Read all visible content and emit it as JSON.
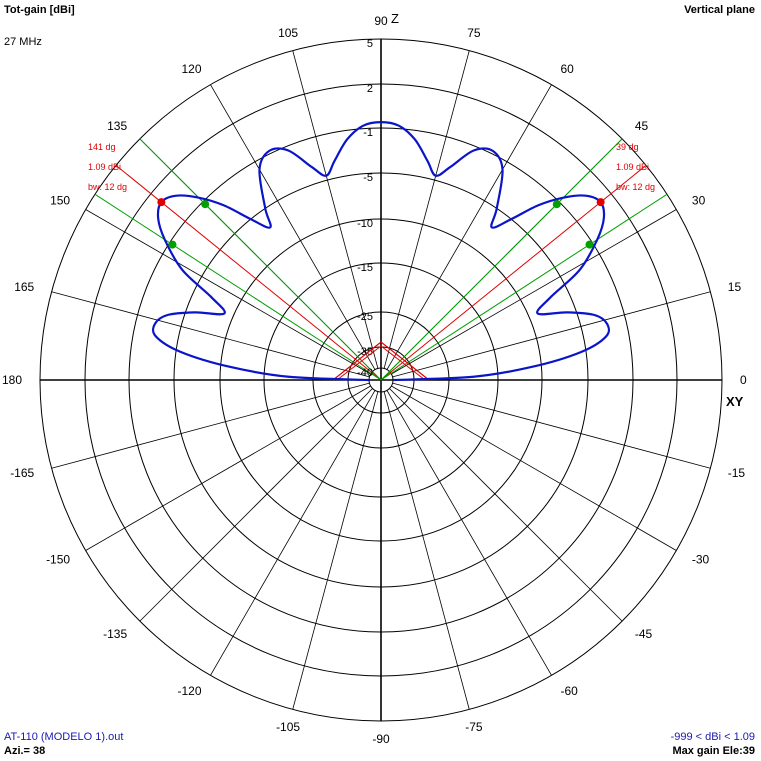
{
  "header": {
    "title": "Tot-gain [dBi]",
    "frequency": "27 MHz",
    "plane": "Vertical plane"
  },
  "footer": {
    "file": "AT-110 (MODELO 1).out",
    "azimuth": "Azi.= 38",
    "range": "-999 < dBi < 1.09",
    "max_gain": "Max gain Ele:39"
  },
  "axis_labels": {
    "z": "Z",
    "xy": "XY"
  },
  "angle_ticks": [
    "90",
    "75",
    "60",
    "45",
    "30",
    "15",
    "0",
    "-15",
    "-30",
    "-45",
    "-60",
    "-75",
    "-90",
    "-105",
    "-120",
    "-135",
    "-150",
    "-165",
    "180",
    "165",
    "150",
    "135",
    "120",
    "105"
  ],
  "gain_ticks": [
    "5",
    "2",
    "-1",
    "-5",
    "-10",
    "-15",
    "-25",
    "-35",
    "-40"
  ],
  "colors": {
    "pattern": "#0a14c8",
    "max_marker": "#e00000",
    "bw_marker": "#00a000",
    "grid": "#000000"
  },
  "lobe_annotations": [
    {
      "side": "right",
      "lines": [
        "39 dg",
        "1.09 dBi",
        "bw: 12 dg"
      ]
    },
    {
      "side": "left",
      "lines": [
        "141 dg",
        "1.09 dBi",
        "bw: 12 dg"
      ]
    }
  ],
  "chart_data": {
    "type": "polar",
    "plane": "vertical",
    "frequency_mhz": 27,
    "angle_unit": "deg",
    "gain_unit": "dBi",
    "gain_rings_dbi": [
      5,
      2,
      -1,
      -5,
      -10,
      -15,
      -25,
      -35,
      -40
    ],
    "max_gain_dbi": 1.09,
    "max_gain_elevation_deg": [
      39,
      141
    ],
    "beamwidth_deg": 12,
    "series": [
      {
        "name": "Tot-gain",
        "points": [
          {
            "angle": 0,
            "gain": -40
          },
          {
            "angle": 2,
            "gain": -20
          },
          {
            "angle": 5,
            "gain": -11
          },
          {
            "angle": 8,
            "gain": -5.5
          },
          {
            "angle": 11,
            "gain": -3
          },
          {
            "angle": 14,
            "gain": -2.7
          },
          {
            "angle": 17,
            "gain": -3.6
          },
          {
            "angle": 20,
            "gain": -6
          },
          {
            "angle": 23,
            "gain": -9
          },
          {
            "angle": 26,
            "gain": -7
          },
          {
            "angle": 29,
            "gain": -3.2
          },
          {
            "angle": 33,
            "gain": -0.6
          },
          {
            "angle": 36,
            "gain": 0.6
          },
          {
            "angle": 39,
            "gain": 1.09
          },
          {
            "angle": 42,
            "gain": 0.6
          },
          {
            "angle": 45,
            "gain": -0.6
          },
          {
            "angle": 48,
            "gain": -2.5
          },
          {
            "angle": 51,
            "gain": -5
          },
          {
            "angle": 54,
            "gain": -7
          },
          {
            "angle": 56,
            "gain": -5
          },
          {
            "angle": 60,
            "gain": -1.8
          },
          {
            "angle": 64,
            "gain": -0.8
          },
          {
            "angle": 68,
            "gain": -1.4
          },
          {
            "angle": 72,
            "gain": -3.5
          },
          {
            "angle": 75,
            "gain": -4.6
          },
          {
            "angle": 78,
            "gain": -3.5
          },
          {
            "angle": 82,
            "gain": -1.8
          },
          {
            "angle": 86,
            "gain": -0.8
          },
          {
            "angle": 90,
            "gain": -0.6
          },
          {
            "angle": 94,
            "gain": -0.8
          },
          {
            "angle": 98,
            "gain": -1.8
          },
          {
            "angle": 102,
            "gain": -3.5
          },
          {
            "angle": 105,
            "gain": -4.6
          },
          {
            "angle": 108,
            "gain": -3.5
          },
          {
            "angle": 112,
            "gain": -1.4
          },
          {
            "angle": 116,
            "gain": -0.8
          },
          {
            "angle": 120,
            "gain": -1.8
          },
          {
            "angle": 124,
            "gain": -5
          },
          {
            "angle": 126,
            "gain": -7
          },
          {
            "angle": 129,
            "gain": -5
          },
          {
            "angle": 132,
            "gain": -2.5
          },
          {
            "angle": 135,
            "gain": -0.6
          },
          {
            "angle": 138,
            "gain": 0.6
          },
          {
            "angle": 141,
            "gain": 1.09
          },
          {
            "angle": 144,
            "gain": 0.6
          },
          {
            "angle": 147,
            "gain": -0.6
          },
          {
            "angle": 151,
            "gain": -3.2
          },
          {
            "angle": 154,
            "gain": -7
          },
          {
            "angle": 157,
            "gain": -9
          },
          {
            "angle": 160,
            "gain": -6
          },
          {
            "angle": 163,
            "gain": -3.6
          },
          {
            "angle": 166,
            "gain": -2.7
          },
          {
            "angle": 169,
            "gain": -3
          },
          {
            "angle": 172,
            "gain": -5.5
          },
          {
            "angle": 175,
            "gain": -11
          },
          {
            "angle": 178,
            "gain": -20
          },
          {
            "angle": 180,
            "gain": -40
          }
        ]
      }
    ]
  }
}
